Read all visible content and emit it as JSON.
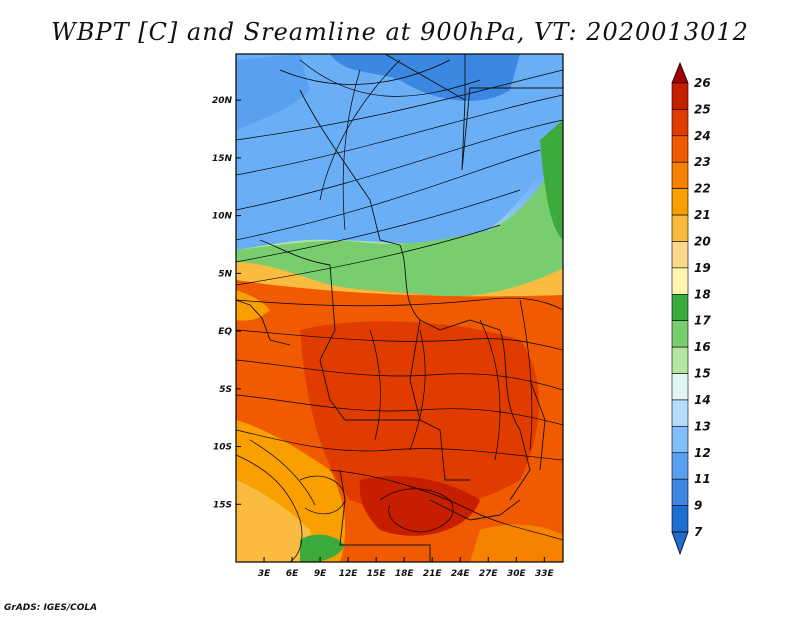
{
  "title": "WBPT [C] and Sreamline at 900hPa, VT: 2020013012",
  "footer": "GrADS: IGES/COLA",
  "map": {
    "lon_range": [
      0,
      35
    ],
    "lat_range": [
      -20,
      24
    ],
    "x_ticks": [
      "3E",
      "6E",
      "9E",
      "12E",
      "15E",
      "18E",
      "21E",
      "24E",
      "27E",
      "30E",
      "33E"
    ],
    "x_tick_values": [
      3,
      6,
      9,
      12,
      15,
      18,
      21,
      24,
      27,
      30,
      33
    ],
    "y_ticks": [
      "20N",
      "15N",
      "10N",
      "5N",
      "EQ",
      "5S",
      "10S",
      "15S"
    ],
    "y_tick_values": [
      20,
      15,
      10,
      5,
      0,
      -5,
      -10,
      -15
    ]
  },
  "colorbar": {
    "levels": [
      "26",
      "25",
      "24",
      "23",
      "22",
      "21",
      "20",
      "19",
      "18",
      "17",
      "16",
      "15",
      "14",
      "13",
      "12",
      "11",
      "9",
      "7"
    ],
    "colors": [
      "#a50000",
      "#c81e00",
      "#e13c00",
      "#f05a00",
      "#f78200",
      "#f9a000",
      "#fbbb40",
      "#fcd98a",
      "#fff4b0",
      "#3caa3c",
      "#78cd6e",
      "#b4e6a0",
      "#e1f5f5",
      "#b4dcfa",
      "#82befa",
      "#5aa0f0",
      "#3c87e1",
      "#1e6ed2"
    ]
  }
}
